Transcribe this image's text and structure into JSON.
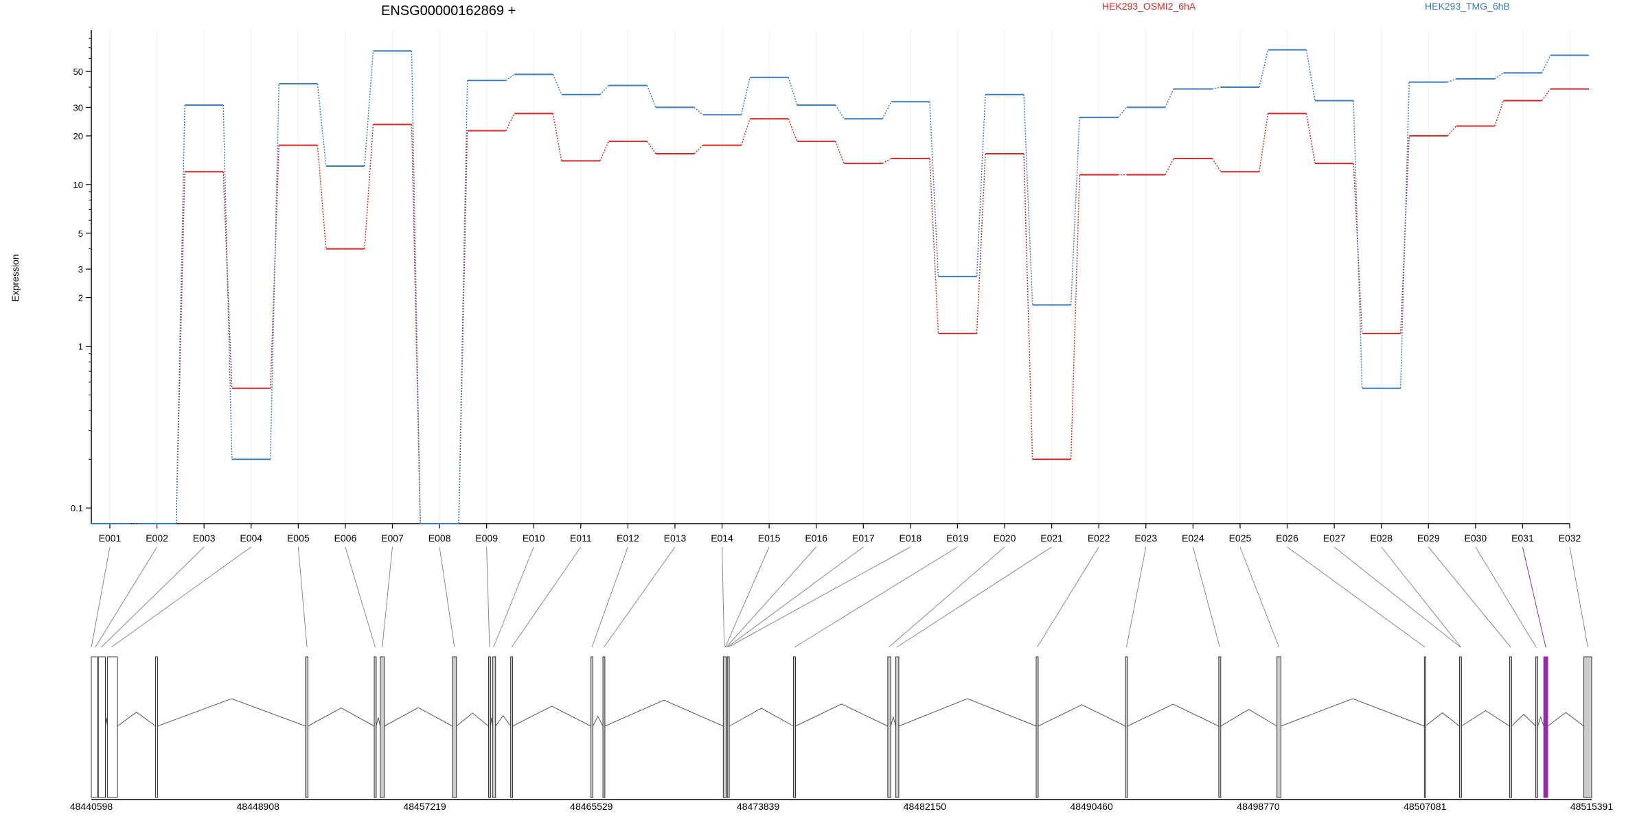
{
  "chart_data": {
    "type": "line",
    "title": "ENSG00000162869 +",
    "ylabel": "Expression",
    "yscale": "log",
    "ylim": [
      0.08,
      90
    ],
    "yticks": [
      {
        "value": 0.1,
        "label": "0.1"
      },
      {
        "value": 1,
        "label": "1"
      },
      {
        "value": 2,
        "label": "2"
      },
      {
        "value": 3,
        "label": "3"
      },
      {
        "value": 5,
        "label": "5"
      },
      {
        "value": 10,
        "label": "10"
      },
      {
        "value": 20,
        "label": "20"
      },
      {
        "value": 30,
        "label": "30"
      },
      {
        "value": 50,
        "label": "50"
      }
    ],
    "legend_position": "top",
    "categories": [
      "E001",
      "E002",
      "E003",
      "E004",
      "E005",
      "E006",
      "E007",
      "E008",
      "E009",
      "E010",
      "E011",
      "E012",
      "E013",
      "E014",
      "E015",
      "E016",
      "E017",
      "E018",
      "E019",
      "E020",
      "E021",
      "E022",
      "E023",
      "E024",
      "E025",
      "E026",
      "E027",
      "E028",
      "E029",
      "E030",
      "E031",
      "E032"
    ],
    "series": [
      {
        "name": "HEK293_OSMI2_6hA",
        "color": "#d62728",
        "values": [
          0.08,
          0.08,
          12,
          0.55,
          17.5,
          4,
          23.5,
          0.08,
          21.5,
          27.5,
          14,
          18.5,
          15.5,
          17.5,
          25.5,
          18.5,
          13.5,
          14.5,
          1.2,
          15.5,
          0.2,
          11.5,
          11.5,
          14.5,
          12,
          27.5,
          13.5,
          1.2,
          20,
          23,
          33,
          39
        ]
      },
      {
        "name": "HEK293_TMG_6hB",
        "color": "#3a7bbf",
        "values": [
          0.08,
          0.08,
          31,
          0.2,
          42,
          13,
          67,
          0.08,
          44,
          48,
          36,
          41,
          30,
          27,
          46,
          31,
          25.5,
          32.5,
          2.7,
          36,
          1.8,
          26,
          30,
          39,
          40,
          68,
          33,
          0.55,
          43,
          45,
          49,
          63
        ]
      }
    ],
    "highlighted_exon": "E031",
    "highlight_color": "#9a2aa8",
    "gene_model": {
      "coord_labels": [
        "48440598",
        "48448908",
        "48457219",
        "48465529",
        "48473839",
        "48482150",
        "48490460",
        "48498770",
        "48507081",
        "48515391"
      ],
      "coord_range": [
        48440598,
        48515391
      ],
      "exon_starts": [
        48440598,
        48440950,
        48441400,
        48443800,
        48451280,
        48454700,
        48455000,
        48458600,
        48460400,
        48460600,
        48461500,
        48465500,
        48466100,
        48472100,
        48472300,
        48475600,
        48480300,
        48480700,
        48487700,
        48492150,
        48496800,
        48499700,
        48507050,
        48508800,
        48511300,
        48512600,
        48513000,
        48515000
      ],
      "exon_ends": [
        48440900,
        48441300,
        48441900,
        48443900,
        48451400,
        48454800,
        48455200,
        48458800,
        48460500,
        48460750,
        48461600,
        48465600,
        48466200,
        48472250,
        48472400,
        48475700,
        48480450,
        48480850,
        48487800,
        48492250,
        48496900,
        48499900,
        48507100,
        48508900,
        48511400,
        48512700,
        48513200,
        48515391
      ],
      "exon_fills": [
        "#ffffff",
        "#ffffff",
        "#ffffff",
        "#ffffff",
        "#cccccc",
        "#cccccc",
        "#cccccc",
        "#cccccc",
        "#cccccc",
        "#cccccc",
        "#cccccc",
        "#cccccc",
        "#cccccc",
        "#cccccc",
        "#cccccc",
        "#cccccc",
        "#cccccc",
        "#cccccc",
        "#cccccc",
        "#cccccc",
        "#cccccc",
        "#cccccc",
        "#cccccc",
        "#cccccc",
        "#cccccc",
        "#cccccc",
        "#9a2aa8",
        "#cccccc"
      ],
      "exon_map": [
        48440600,
        48440800,
        48441100,
        48441600,
        48451350,
        48454750,
        48455100,
        48458700,
        48460450,
        48460650,
        48461550,
        48465550,
        48466150,
        48472150,
        48472200,
        48472250,
        48472300,
        48472350,
        48475650,
        48480350,
        48480750,
        48487750,
        48492200,
        48496850,
        48499800,
        48507080,
        48508850,
        48508870,
        48511350,
        48512620,
        48513100,
        48515200
      ]
    }
  }
}
